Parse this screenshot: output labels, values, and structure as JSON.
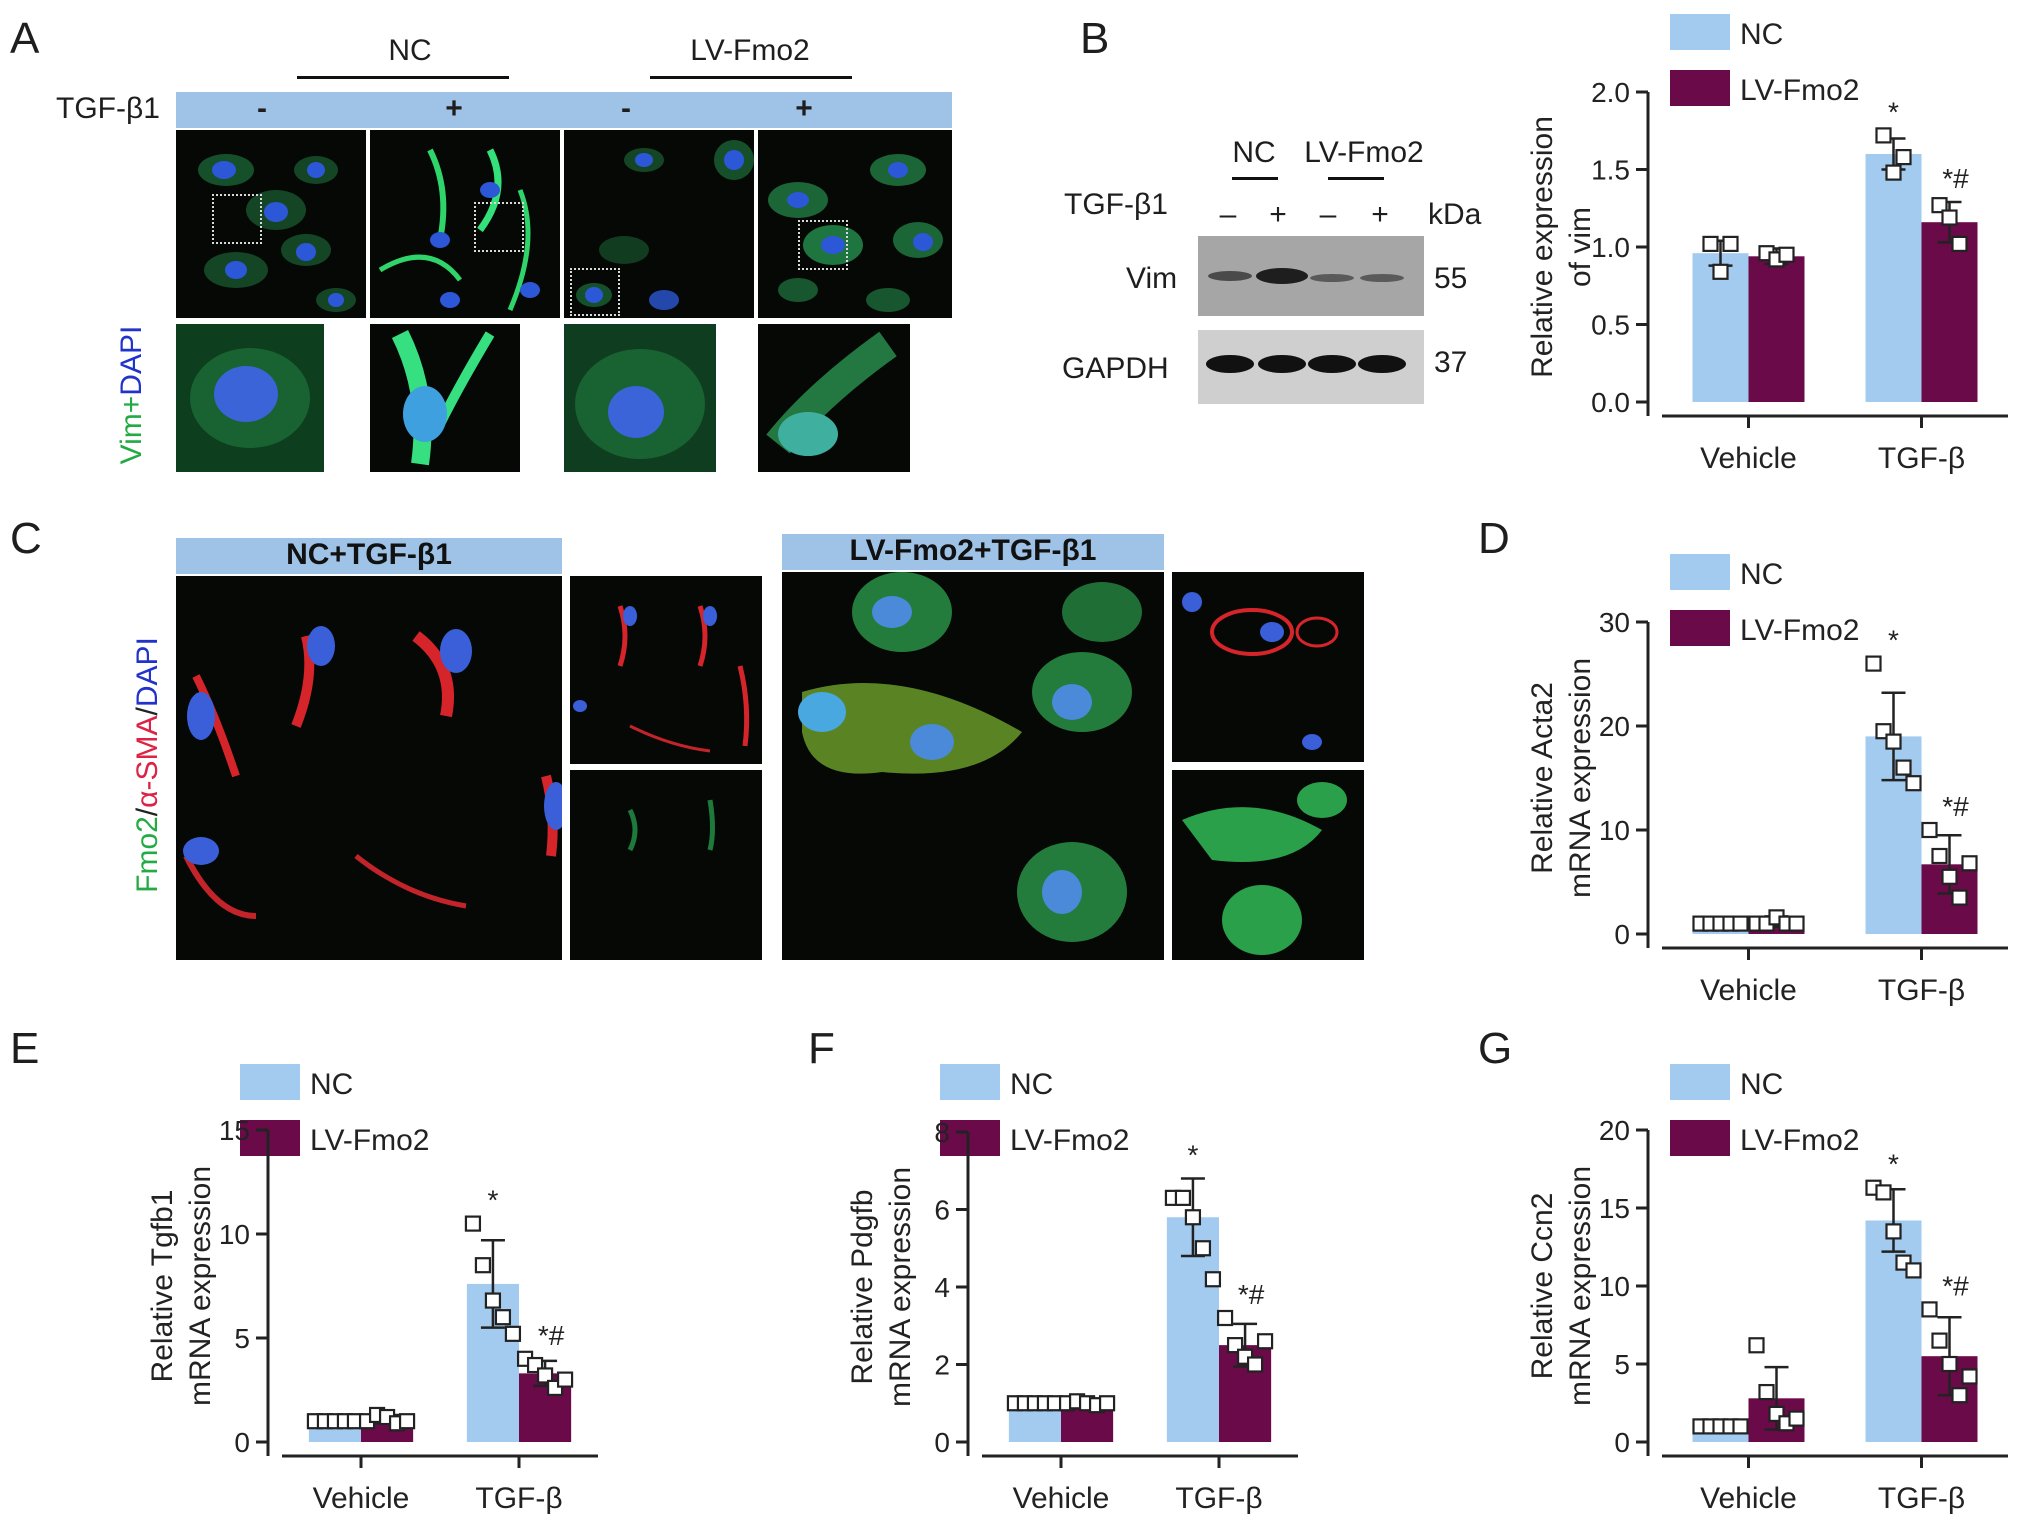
{
  "panels": {
    "A": {
      "letter": "A",
      "group_labels": [
        "NC",
        "LV-Fmo2"
      ],
      "treatment_label": "TGF-β1",
      "treatment_signs": [
        "-",
        "+",
        "-",
        "+"
      ],
      "stain_label_green": "Vim+",
      "stain_label_blue": "DAPI"
    },
    "B": {
      "letter": "B",
      "blot_groups": [
        "NC",
        "LV-Fmo2"
      ],
      "blot_treatment_label": "TGF-β1",
      "blot_signs": [
        "–",
        "+",
        "–",
        "+"
      ],
      "kda_label": "kDa",
      "proteins": [
        {
          "name": "Vim",
          "kda": "55"
        },
        {
          "name": "GAPDH",
          "kda": "37"
        }
      ]
    },
    "C": {
      "letter": "C",
      "header_left": "NC+TGF-β1",
      "header_right": "LV-Fmo2+TGF-β1",
      "stain_fmo2": "Fmo2",
      "stain_sma": "α-SMA",
      "stain_dapi": "DAPI",
      "sep": "/"
    },
    "D": {
      "letter": "D"
    },
    "E": {
      "letter": "E"
    },
    "F": {
      "letter": "F"
    },
    "G": {
      "letter": "G"
    }
  },
  "colors": {
    "nc": "#a3cbf0",
    "lvfmo2": "#6a0a49",
    "band": "#9ec3e6",
    "dapi_text": "#2233cc",
    "vim_text": "#22aa44",
    "sma_text": "#dd2244"
  },
  "chart_data": [
    {
      "id": "B-vim",
      "type": "bar",
      "categories": [
        "Vehicle",
        "TGF-β"
      ],
      "series": [
        {
          "name": "NC",
          "values": [
            0.96,
            1.6
          ],
          "errors": [
            0.08,
            0.1
          ],
          "points": [
            [
              1.02,
              0.84,
              1.02
            ],
            [
              1.72,
              1.48,
              1.58
            ]
          ]
        },
        {
          "name": "LV-Fmo2",
          "values": [
            0.94,
            1.16
          ],
          "errors": [
            0.05,
            0.13
          ],
          "points": [
            [
              0.96,
              0.92,
              0.95
            ],
            [
              1.27,
              1.19,
              1.02
            ]
          ]
        }
      ],
      "ylabel": "Relative expression\nof vim",
      "ylim": [
        0,
        2.0
      ],
      "yticks": [
        "0.0",
        "0.5",
        "1.0",
        "1.5",
        "2.0"
      ],
      "annotations": {
        "TGF-β": {
          "NC": "*",
          "LV-Fmo2": "*#"
        }
      }
    },
    {
      "id": "D-acta2",
      "type": "bar",
      "categories": [
        "Vehicle",
        "TGF-β"
      ],
      "series": [
        {
          "name": "NC",
          "values": [
            1.0,
            19.0
          ],
          "errors": [
            0.1,
            4.2
          ],
          "points": [
            [
              1.0,
              1.0,
              1.0,
              1.0,
              1.0
            ],
            [
              26.0,
              19.5,
              18.5,
              16.0,
              14.5
            ]
          ]
        },
        {
          "name": "LV-Fmo2",
          "values": [
            1.2,
            6.7
          ],
          "errors": [
            0.5,
            2.8
          ],
          "points": [
            [
              1.0,
              1.0,
              1.6,
              1.0,
              1.0
            ],
            [
              10.0,
              7.5,
              5.5,
              3.5,
              6.8
            ]
          ]
        }
      ],
      "ylabel": "Relative Acta2\nmRNA expression",
      "ylim": [
        0,
        30
      ],
      "yticks": [
        "0",
        "10",
        "20",
        "30"
      ],
      "annotations": {
        "TGF-β": {
          "NC": "*",
          "LV-Fmo2": "*#"
        }
      }
    },
    {
      "id": "E-tgfb1",
      "type": "bar",
      "categories": [
        "Vehicle",
        "TGF-β"
      ],
      "series": [
        {
          "name": "NC",
          "values": [
            1.0,
            7.6
          ],
          "errors": [
            0.05,
            2.1
          ],
          "points": [
            [
              1.0,
              1.0,
              1.0,
              1.0,
              1.0
            ],
            [
              10.5,
              8.5,
              6.8,
              6.0,
              5.2
            ]
          ]
        },
        {
          "name": "LV-Fmo2",
          "values": [
            1.1,
            3.3
          ],
          "errors": [
            0.2,
            0.6
          ],
          "points": [
            [
              1.0,
              1.3,
              1.2,
              0.9,
              1.0
            ],
            [
              4.0,
              3.7,
              3.2,
              2.6,
              3.0
            ]
          ]
        }
      ],
      "ylabel": "Relative Tgfb1\nmRNA expression",
      "ylim": [
        0,
        15
      ],
      "yticks": [
        "0",
        "5",
        "10",
        "15"
      ],
      "annotations": {
        "TGF-β": {
          "NC": "*",
          "LV-Fmo2": "*#"
        }
      }
    },
    {
      "id": "F-pdgfb",
      "type": "bar",
      "categories": [
        "Vehicle",
        "TGF-β"
      ],
      "series": [
        {
          "name": "NC",
          "values": [
            1.0,
            5.8
          ],
          "errors": [
            0.05,
            1.0
          ],
          "points": [
            [
              1.0,
              1.0,
              1.0,
              1.0,
              1.0
            ],
            [
              6.3,
              6.3,
              5.8,
              5.0,
              4.2
            ]
          ]
        },
        {
          "name": "LV-Fmo2",
          "values": [
            1.0,
            2.5
          ],
          "errors": [
            0.05,
            0.55
          ],
          "points": [
            [
              1.0,
              1.05,
              1.0,
              0.95,
              1.0
            ],
            [
              3.2,
              2.5,
              2.2,
              2.0,
              2.6
            ]
          ]
        }
      ],
      "ylabel": "Relative Pdgfb\nmRNA expression",
      "ylim": [
        0,
        8
      ],
      "yticks": [
        "0",
        "2",
        "4",
        "6",
        "8"
      ],
      "annotations": {
        "TGF-β": {
          "NC": "*",
          "LV-Fmo2": "*#"
        }
      }
    },
    {
      "id": "G-ccn2",
      "type": "bar",
      "categories": [
        "Vehicle",
        "TGF-β"
      ],
      "series": [
        {
          "name": "NC",
          "values": [
            1.0,
            14.2
          ],
          "errors": [
            0.05,
            2.0
          ],
          "points": [
            [
              1.0,
              1.0,
              1.0,
              1.0,
              1.0
            ],
            [
              16.3,
              16.0,
              13.5,
              11.5,
              11.0
            ]
          ]
        },
        {
          "name": "LV-Fmo2",
          "values": [
            2.8,
            5.5
          ],
          "errors": [
            2.0,
            2.5
          ],
          "points": [
            [
              6.2,
              3.2,
              1.8,
              1.2,
              1.5
            ],
            [
              8.5,
              6.5,
              5.0,
              3.0,
              4.2
            ]
          ]
        }
      ],
      "ylabel": "Relative Ccn2\nmRNA expression",
      "ylim": [
        0,
        20
      ],
      "yticks": [
        "0",
        "5",
        "10",
        "15",
        "20"
      ],
      "annotations": {
        "TGF-β": {
          "NC": "*",
          "LV-Fmo2": "*#"
        }
      }
    }
  ]
}
